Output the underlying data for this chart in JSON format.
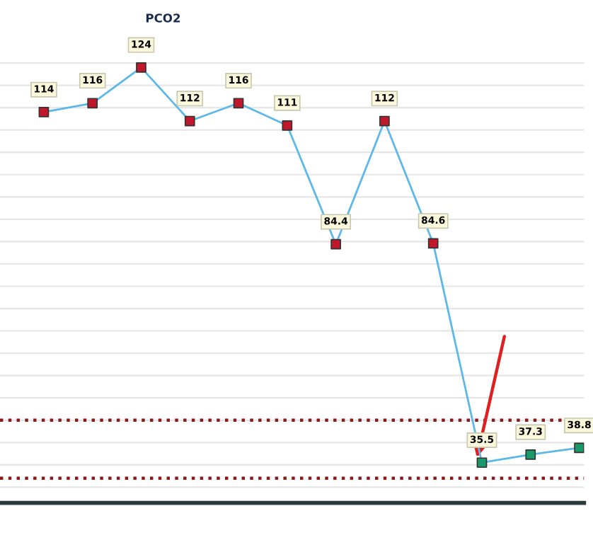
{
  "chart_data": {
    "type": "line",
    "title": "PCO2",
    "categories": [
      null,
      null,
      null,
      null,
      null,
      null,
      null,
      null,
      null,
      null,
      null,
      null
    ],
    "series": [
      {
        "color": "#5bb8e8",
        "values": [
          114,
          116,
          124,
          112,
          116,
          111,
          84.4,
          112,
          84.6,
          35.5,
          37.3,
          38.8
        ],
        "colors": [
          "#c0182a",
          "#c0182a",
          "#c0182a",
          "#c0182a",
          "#c0182a",
          "#c0182a",
          "#c0182a",
          "#c0182a",
          "#c0182a",
          "#1a9a6a",
          "#1a9a6a",
          "#1a9a6a"
        ]
      }
    ],
    "data_labels": true,
    "marker": "square",
    "line_style": "solid",
    "grid": "y",
    "tick_labels": false,
    "ref_lines": [
      {
        "axis": "y",
        "value": 45,
        "color": "#8b1a1a",
        "line_style": "dotted"
      },
      {
        "axis": "y",
        "value": 32,
        "color": "#8b1a1a",
        "line_style": "dotted"
      }
    ],
    "legend": false
  }
}
